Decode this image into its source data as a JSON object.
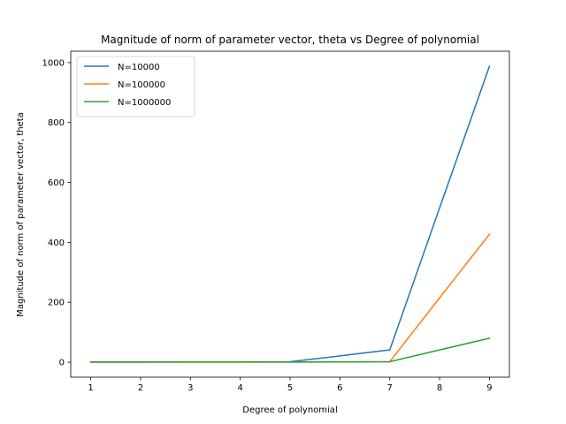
{
  "chart_data": {
    "type": "line",
    "title": "Magnitude of norm of parameter vector, theta vs Degree of polynomial",
    "xlabel": "Degree of polynomial",
    "ylabel": "Magnitude of norm of parameter vector, theta",
    "x": [
      1,
      2,
      3,
      4,
      5,
      6,
      7,
      8,
      9
    ],
    "xticks": [
      1,
      2,
      3,
      4,
      5,
      6,
      7,
      8,
      9
    ],
    "yticks": [
      0,
      200,
      400,
      600,
      800,
      1000
    ],
    "xlim": [
      0.6,
      9.4
    ],
    "ylim": [
      -50,
      1038
    ],
    "grid": false,
    "legend_position": "upper-left",
    "series": [
      {
        "name": "N=10000",
        "color": "#1f77b4",
        "values": [
          0.5,
          0.6,
          0.7,
          0.8,
          1.5,
          21,
          41,
          515,
          988
        ]
      },
      {
        "name": "N=100000",
        "color": "#ff7f0e",
        "values": [
          0.5,
          0.5,
          0.5,
          0.5,
          0.6,
          1.0,
          1.5,
          215,
          427
        ]
      },
      {
        "name": "N=1000000",
        "color": "#2ca02c",
        "values": [
          0.5,
          0.5,
          0.5,
          0.5,
          0.6,
          1.0,
          1.5,
          41,
          80
        ]
      }
    ]
  }
}
